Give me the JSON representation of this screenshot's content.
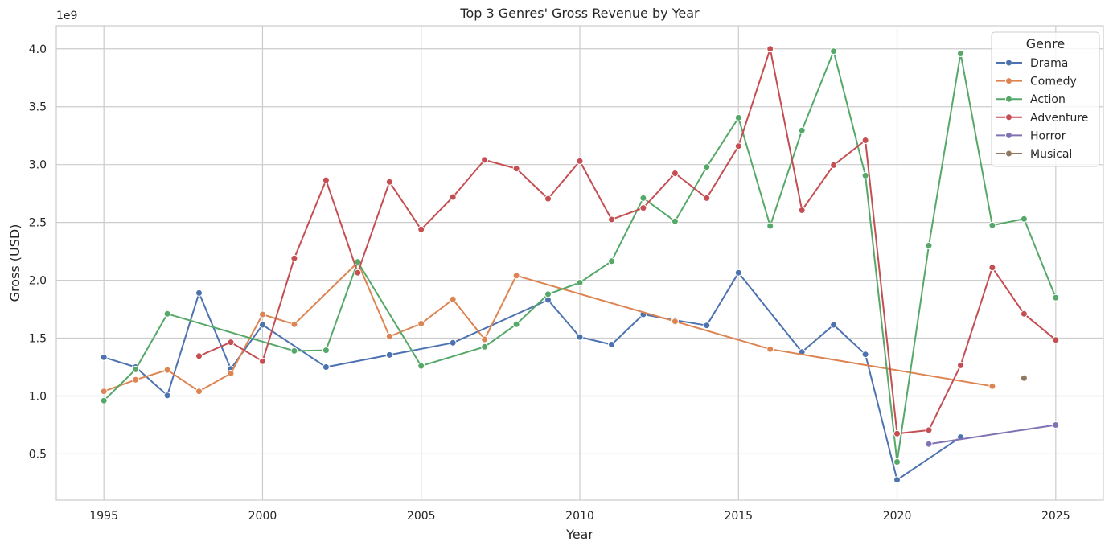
{
  "chart_data": {
    "type": "line",
    "title": "Top 3 Genres' Gross Revenue by Year",
    "xlabel": "Year",
    "ylabel": "Gross (USD)",
    "y_scale_label": "1e9",
    "xlim": [
      1993.5,
      2026.5
    ],
    "ylim": [
      0.1,
      4.2
    ],
    "x_ticks": [
      1995,
      2000,
      2005,
      2010,
      2015,
      2020,
      2025
    ],
    "y_ticks": [
      0.5,
      1.0,
      1.5,
      2.0,
      2.5,
      3.0,
      3.5,
      4.0
    ],
    "y_tick_labels": [
      "0.5",
      "1.0",
      "1.5",
      "2.0",
      "2.5",
      "3.0",
      "3.5",
      "4.0"
    ],
    "grid": true,
    "legend": {
      "title": "Genre",
      "placement": "top-right"
    },
    "series": [
      {
        "name": "Drama",
        "color": "#4c72b0",
        "points": [
          [
            1995,
            1.335
          ],
          [
            1996,
            1.25
          ],
          [
            1997,
            1.005
          ],
          [
            1998,
            1.89
          ],
          [
            1999,
            1.235
          ],
          [
            2000,
            1.615
          ],
          [
            2002,
            1.25
          ],
          [
            2004,
            1.355
          ],
          [
            2006,
            1.46
          ],
          [
            2009,
            1.83
          ],
          [
            2010,
            1.51
          ],
          [
            2011,
            1.445
          ],
          [
            2012,
            1.705
          ],
          [
            2013,
            1.655
          ],
          [
            2014,
            1.61
          ],
          [
            2015,
            2.065
          ],
          [
            2017,
            1.38
          ],
          [
            2018,
            1.615
          ],
          [
            2019,
            1.36
          ],
          [
            2020,
            0.275
          ],
          [
            2022,
            0.645
          ]
        ]
      },
      {
        "name": "Comedy",
        "color": "#dd8452",
        "points": [
          [
            1995,
            1.04
          ],
          [
            1996,
            1.14
          ],
          [
            1997,
            1.225
          ],
          [
            1998,
            1.04
          ],
          [
            1999,
            1.195
          ],
          [
            2000,
            1.705
          ],
          [
            2001,
            1.62
          ],
          [
            2003,
            2.155
          ],
          [
            2004,
            1.515
          ],
          [
            2005,
            1.625
          ],
          [
            2006,
            1.835
          ],
          [
            2007,
            1.49
          ],
          [
            2008,
            2.04
          ],
          [
            2013,
            1.645
          ],
          [
            2016,
            1.405
          ],
          [
            2023,
            1.085
          ]
        ]
      },
      {
        "name": "Action",
        "color": "#55a868",
        "points": [
          [
            1995,
            0.96
          ],
          [
            1996,
            1.23
          ],
          [
            1997,
            1.71
          ],
          [
            2001,
            1.39
          ],
          [
            2002,
            1.395
          ],
          [
            2003,
            2.16
          ],
          [
            2005,
            1.26
          ],
          [
            2007,
            1.425
          ],
          [
            2008,
            1.62
          ],
          [
            2009,
            1.88
          ],
          [
            2010,
            1.98
          ],
          [
            2011,
            2.165
          ],
          [
            2012,
            2.71
          ],
          [
            2013,
            2.51
          ],
          [
            2014,
            2.98
          ],
          [
            2015,
            3.405
          ],
          [
            2016,
            2.47
          ],
          [
            2017,
            3.295
          ],
          [
            2018,
            3.98
          ],
          [
            2019,
            2.905
          ],
          [
            2020,
            0.43
          ],
          [
            2021,
            2.3
          ],
          [
            2022,
            3.96
          ],
          [
            2023,
            2.475
          ],
          [
            2024,
            2.53
          ],
          [
            2025,
            1.85
          ]
        ]
      },
      {
        "name": "Adventure",
        "color": "#c44e52",
        "points": [
          [
            1998,
            1.345
          ],
          [
            1999,
            1.465
          ],
          [
            2000,
            1.3
          ],
          [
            2001,
            2.19
          ],
          [
            2002,
            2.865
          ],
          [
            2003,
            2.065
          ],
          [
            2004,
            2.85
          ],
          [
            2005,
            2.44
          ],
          [
            2006,
            2.72
          ],
          [
            2007,
            3.04
          ],
          [
            2008,
            2.965
          ],
          [
            2009,
            2.705
          ],
          [
            2010,
            3.03
          ],
          [
            2011,
            2.525
          ],
          [
            2012,
            2.625
          ],
          [
            2013,
            2.925
          ],
          [
            2014,
            2.71
          ],
          [
            2015,
            3.16
          ],
          [
            2016,
            4.0
          ],
          [
            2017,
            2.605
          ],
          [
            2018,
            2.995
          ],
          [
            2019,
            3.21
          ],
          [
            2020,
            0.675
          ],
          [
            2021,
            0.705
          ],
          [
            2022,
            1.265
          ],
          [
            2023,
            2.11
          ],
          [
            2024,
            1.71
          ],
          [
            2025,
            1.485
          ]
        ]
      },
      {
        "name": "Horror",
        "color": "#8172b3",
        "points": [
          [
            2021,
            0.585
          ],
          [
            2025,
            0.75
          ]
        ]
      },
      {
        "name": "Musical",
        "color": "#937860",
        "points": [
          [
            2024,
            1.155
          ]
        ]
      }
    ]
  }
}
